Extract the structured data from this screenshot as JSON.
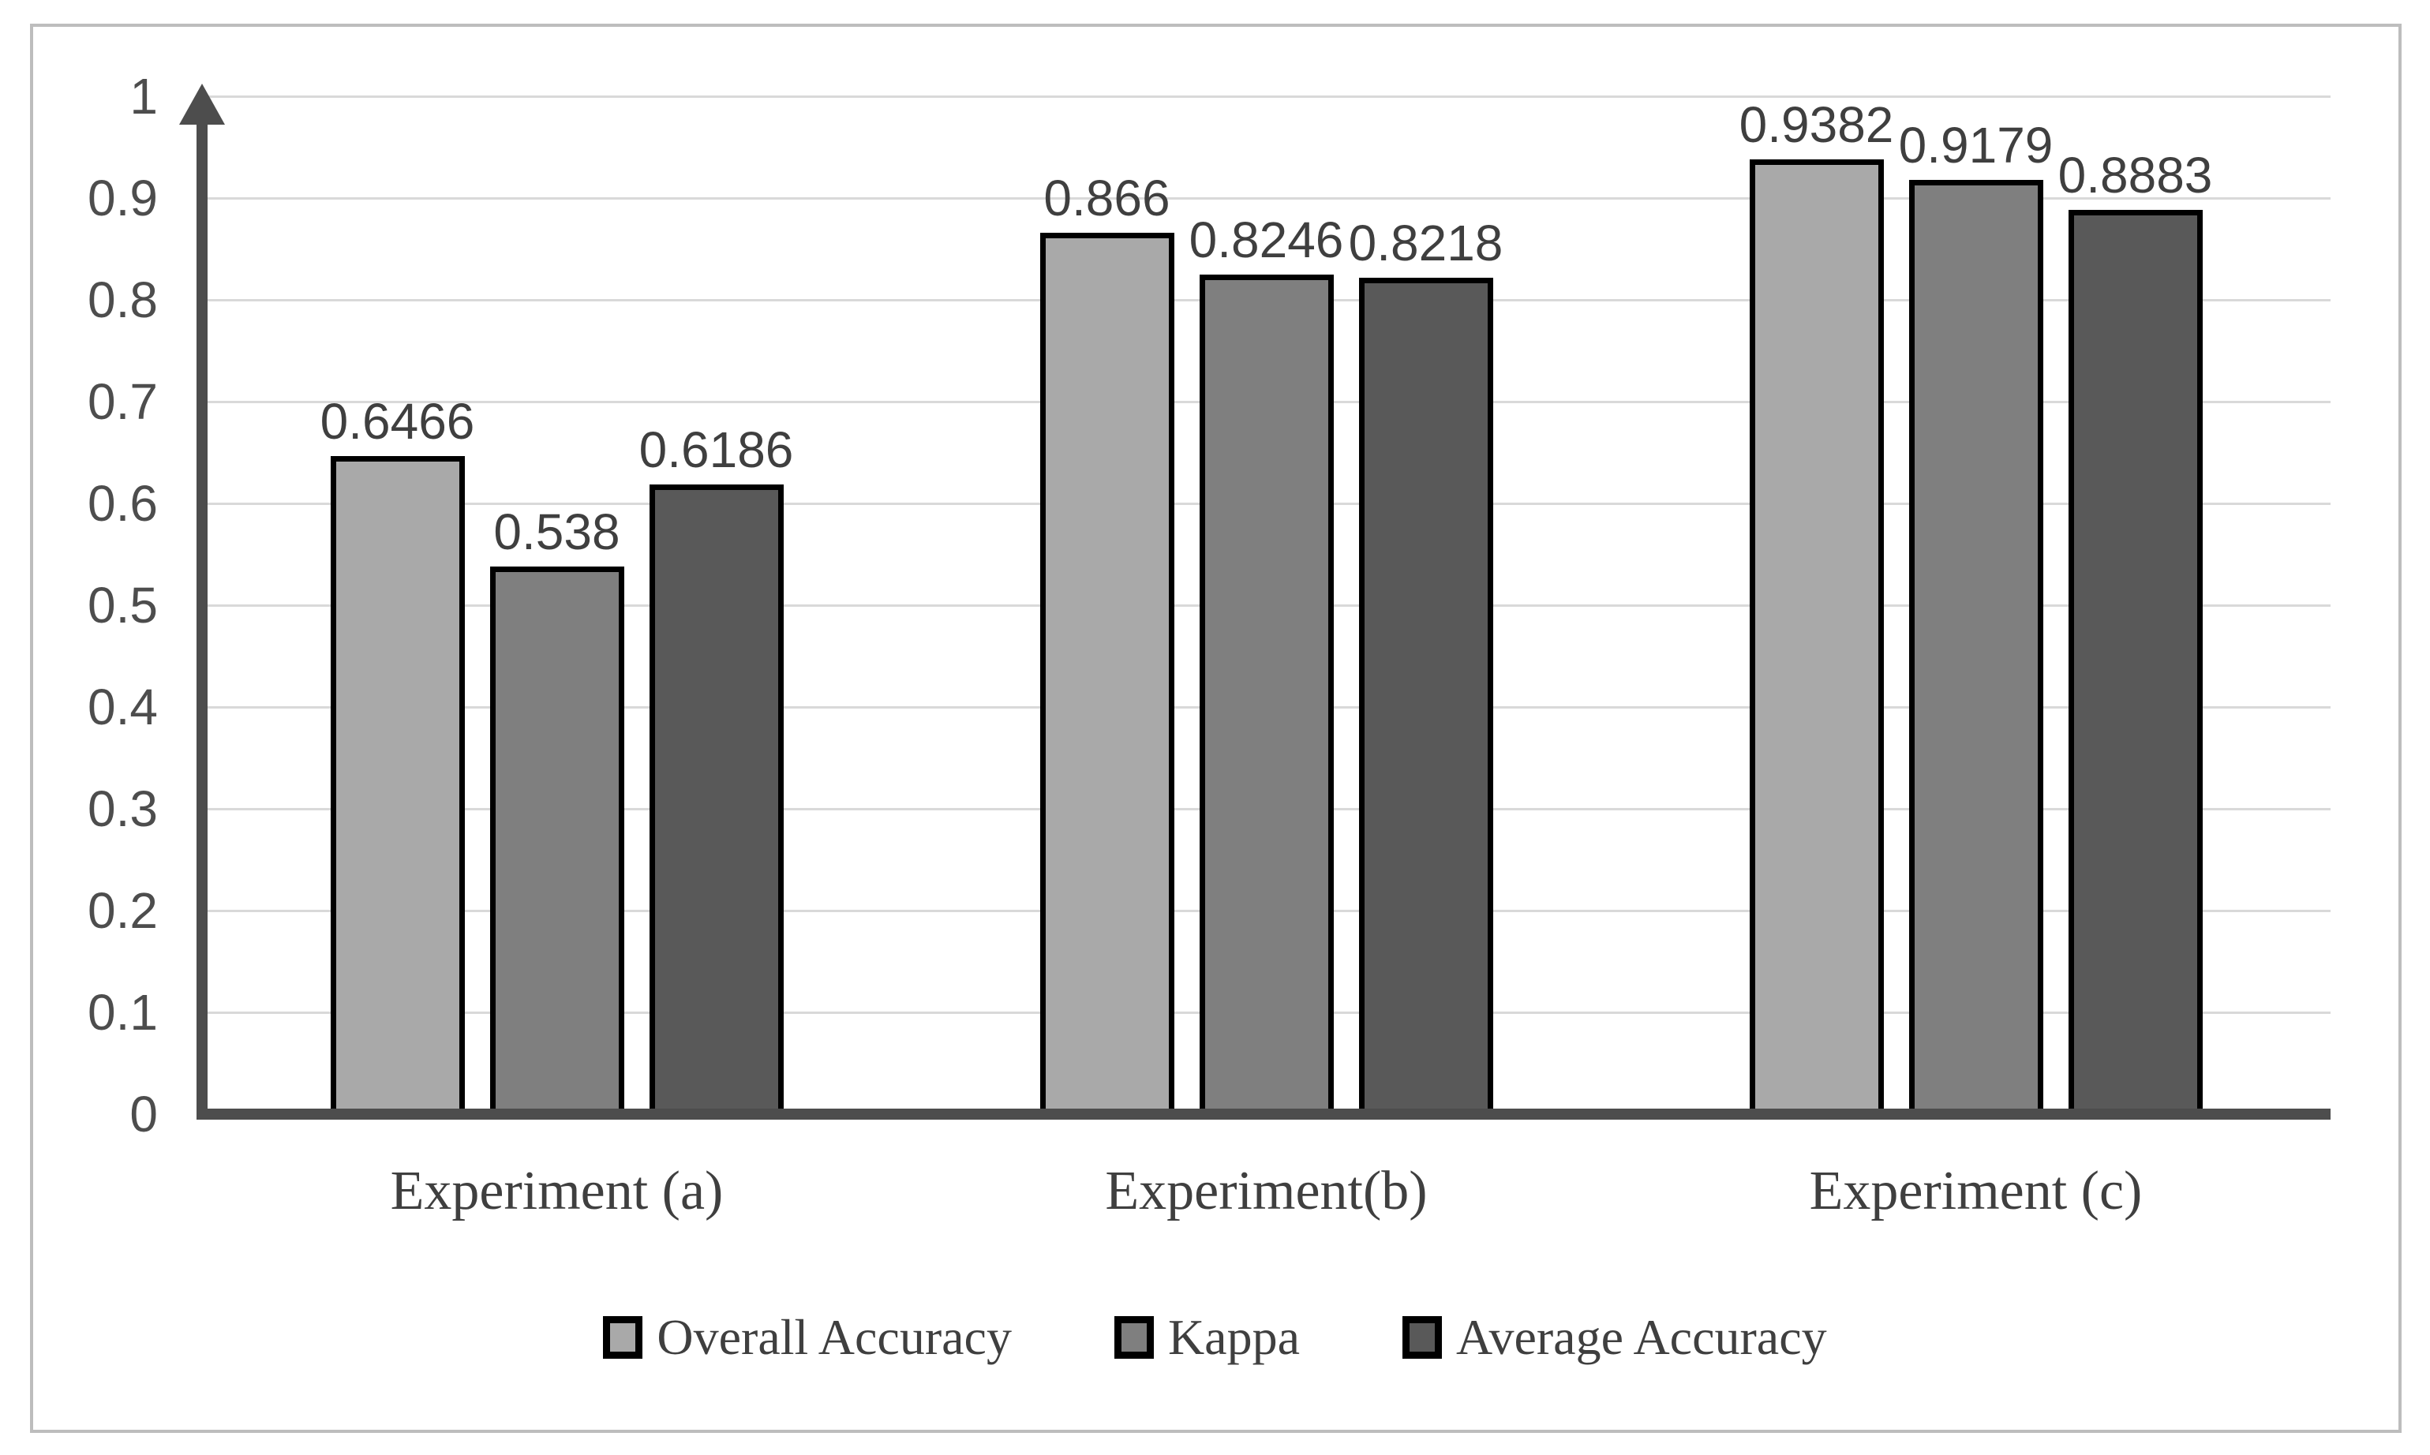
{
  "figure": {
    "background": "#ffffff",
    "frame_border_color": "#bdbdbd"
  },
  "chart_data": {
    "type": "bar",
    "title": "",
    "categories": [
      "Experiment (a)",
      "Experiment(b)",
      "Experiment (c)"
    ],
    "series": [
      {
        "name": "Overall Accuracy",
        "color": "#a9a9a9",
        "values": [
          0.6466,
          0.866,
          0.9382
        ],
        "value_labels": [
          "0.6466",
          "0.866",
          "0.9382"
        ]
      },
      {
        "name": "Kappa",
        "color": "#7f7f7f",
        "values": [
          0.538,
          0.8246,
          0.9179
        ],
        "value_labels": [
          "0.538",
          "0.8246",
          "0.9179"
        ]
      },
      {
        "name": "Average Accuracy",
        "color": "#595959",
        "values": [
          0.6186,
          0.8218,
          0.8883
        ],
        "value_labels": [
          "0.6186",
          "0.8218",
          "0.8883"
        ]
      }
    ],
    "y_axis": {
      "min": 0,
      "max": 1,
      "step": 0.1,
      "tick_labels": [
        "1",
        "0.9",
        "0.8",
        "0.7",
        "0.6",
        "0.5",
        "0.4",
        "0.3",
        "0.2",
        "0.1",
        "0"
      ],
      "arrow": "up"
    },
    "ylim": [
      0,
      1
    ],
    "grid": true,
    "legend_position": "bottom",
    "colors": {
      "gridline": "#d9d9d9",
      "axis": "#4d4d4d",
      "bar_border": "#000000",
      "tick_text": "#4d4d4d",
      "label_text": "#3f3f3f"
    }
  }
}
